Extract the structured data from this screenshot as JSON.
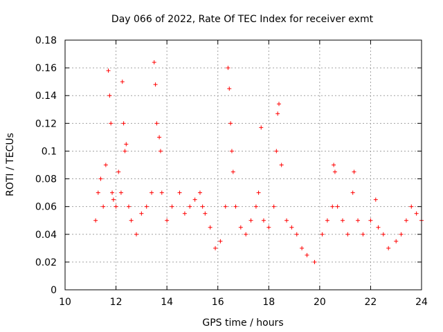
{
  "chart_data": {
    "type": "scatter",
    "title": "Day 066 of 2022, Rate Of TEC Index for receiver exmt",
    "xlabel": "GPS time / hours",
    "ylabel": "ROTI / TECUs",
    "xlim": [
      10,
      24
    ],
    "ylim": [
      0,
      0.18
    ],
    "xticks": [
      10,
      12,
      14,
      16,
      18,
      20,
      22,
      24
    ],
    "yticks": [
      0,
      0.02,
      0.04,
      0.06,
      0.08,
      0.1,
      0.12,
      0.14,
      0.16,
      0.18
    ],
    "xtick_labels": [
      "10",
      "12",
      "14",
      "16",
      "18",
      "20",
      "22",
      "24"
    ],
    "ytick_labels": [
      "0",
      "0.02",
      "0.04",
      "0.06",
      "0.08",
      "0.1",
      "0.12",
      "0.14",
      "0.16",
      "0.18"
    ],
    "grid": true,
    "marker": "+",
    "color": "#ff0000",
    "series": [
      {
        "name": "ROTI",
        "x": [
          11.2,
          11.3,
          11.4,
          11.5,
          11.6,
          11.7,
          11.75,
          11.8,
          11.85,
          11.9,
          12.0,
          12.1,
          12.2,
          12.25,
          12.3,
          12.35,
          12.4,
          12.5,
          12.6,
          12.8,
          13.0,
          13.2,
          13.4,
          13.5,
          13.55,
          13.6,
          13.7,
          13.75,
          13.8,
          14.0,
          14.2,
          14.5,
          14.7,
          14.9,
          15.1,
          15.3,
          15.4,
          15.5,
          15.7,
          15.9,
          16.1,
          16.3,
          16.4,
          16.45,
          16.5,
          16.55,
          16.6,
          16.7,
          16.9,
          17.1,
          17.3,
          17.5,
          17.6,
          17.7,
          17.8,
          18.0,
          18.2,
          18.3,
          18.35,
          18.4,
          18.5,
          18.7,
          18.9,
          19.1,
          19.3,
          19.5,
          19.8,
          20.1,
          20.3,
          20.5,
          20.55,
          20.6,
          20.7,
          20.9,
          21.1,
          21.3,
          21.35,
          21.5,
          21.7,
          22.0,
          22.2,
          22.3,
          22.5,
          22.7,
          23.0,
          23.2,
          23.4,
          23.6,
          23.8,
          24.0
        ],
        "y": [
          0.05,
          0.07,
          0.08,
          0.06,
          0.09,
          0.158,
          0.14,
          0.12,
          0.07,
          0.065,
          0.06,
          0.085,
          0.07,
          0.15,
          0.12,
          0.1,
          0.105,
          0.06,
          0.05,
          0.04,
          0.055,
          0.06,
          0.07,
          0.164,
          0.148,
          0.12,
          0.11,
          0.1,
          0.07,
          0.05,
          0.06,
          0.07,
          0.055,
          0.06,
          0.065,
          0.07,
          0.06,
          0.055,
          0.045,
          0.03,
          0.035,
          0.06,
          0.16,
          0.145,
          0.12,
          0.1,
          0.085,
          0.06,
          0.045,
          0.04,
          0.05,
          0.06,
          0.07,
          0.117,
          0.05,
          0.045,
          0.06,
          0.1,
          0.127,
          0.134,
          0.09,
          0.05,
          0.045,
          0.04,
          0.03,
          0.025,
          0.02,
          0.04,
          0.05,
          0.06,
          0.09,
          0.085,
          0.06,
          0.05,
          0.04,
          0.07,
          0.085,
          0.05,
          0.04,
          0.05,
          0.065,
          0.045,
          0.04,
          0.03,
          0.035,
          0.04,
          0.05,
          0.06,
          0.055,
          0.05
        ]
      }
    ]
  }
}
